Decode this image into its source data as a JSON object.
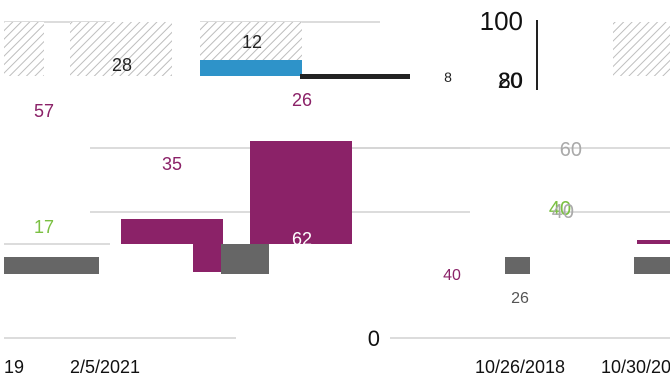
{
  "chart_data": {
    "type": "bar",
    "title": "",
    "xlabel": "",
    "ylabel": "",
    "y_axis": {
      "ticks": [
        "100",
        "80",
        "60",
        "40",
        "0"
      ]
    },
    "x_tick_labels": [
      "19",
      "2/5/2021",
      "10/26/2018",
      "10/30/20"
    ],
    "bars": [
      {
        "label": "28",
        "value": 28,
        "color": "#cfcfcf",
        "pattern": "hatch"
      },
      {
        "label": "12",
        "value": 12,
        "color": "#2e93c9"
      },
      {
        "label": "",
        "value": 28,
        "color": "#cfcfcf",
        "pattern": "hatch"
      },
      {
        "label": "35",
        "value": 35,
        "color": "#8b2268"
      },
      {
        "label": "62",
        "value": 62,
        "color": "#8b2268"
      },
      {
        "label": "17",
        "value": 17,
        "color": "#8b2268"
      },
      {
        "label": "",
        "value": 9,
        "color": "#666666"
      },
      {
        "label": "",
        "value": 9,
        "color": "#666666"
      }
    ],
    "extra_labels": [
      "57",
      "26",
      "8",
      "20",
      "40",
      "26",
      "40"
    ],
    "grid": true
  },
  "colors": {
    "bar_magenta": "#8b2268",
    "bar_blue": "#2e93c9",
    "bar_grey": "#666666",
    "grid": "#d0d0d0",
    "hatch": "#bdbdbd",
    "axis": "#222222"
  }
}
